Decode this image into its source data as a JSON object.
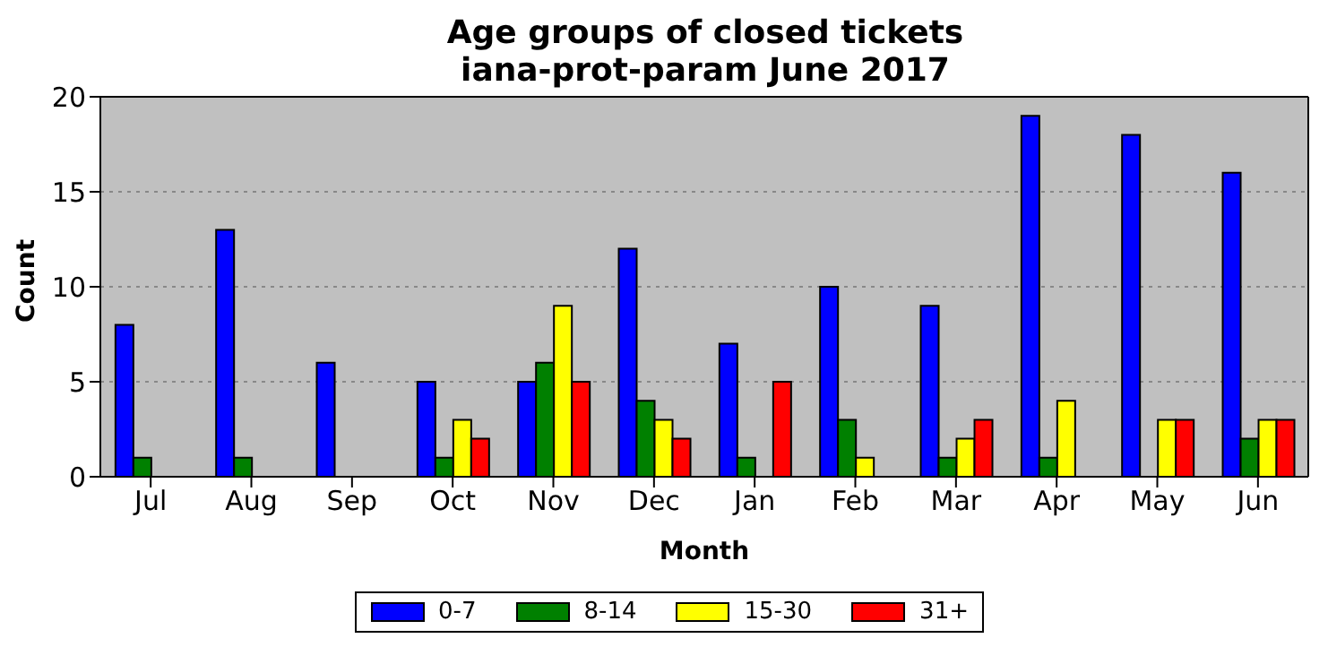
{
  "chart_data": {
    "type": "bar",
    "title": "Age groups of closed tickets\niana-prot-param June 2017",
    "xlabel": "Month",
    "ylabel": "Count",
    "categories": [
      "Jul",
      "Aug",
      "Sep",
      "Oct",
      "Nov",
      "Dec",
      "Jan",
      "Feb",
      "Mar",
      "Apr",
      "May",
      "Jun"
    ],
    "series": [
      {
        "name": "0-7",
        "color": "#0000ff",
        "values": [
          8,
          13,
          6,
          5,
          5,
          12,
          7,
          10,
          9,
          19,
          18,
          16
        ]
      },
      {
        "name": "8-14",
        "color": "#008000",
        "values": [
          1,
          1,
          0,
          1,
          6,
          4,
          1,
          3,
          1,
          1,
          0,
          2
        ]
      },
      {
        "name": "15-30",
        "color": "#ffff00",
        "values": [
          0,
          0,
          0,
          3,
          9,
          3,
          0,
          1,
          2,
          4,
          3,
          3
        ]
      },
      {
        "name": "31+",
        "color": "#ff0000",
        "values": [
          0,
          0,
          0,
          2,
          5,
          2,
          5,
          0,
          3,
          0,
          3,
          3
        ]
      }
    ],
    "ylim": [
      0,
      20
    ],
    "yticks": [
      0,
      5,
      10,
      15,
      20
    ],
    "grid": "y",
    "legend": "bottom"
  }
}
